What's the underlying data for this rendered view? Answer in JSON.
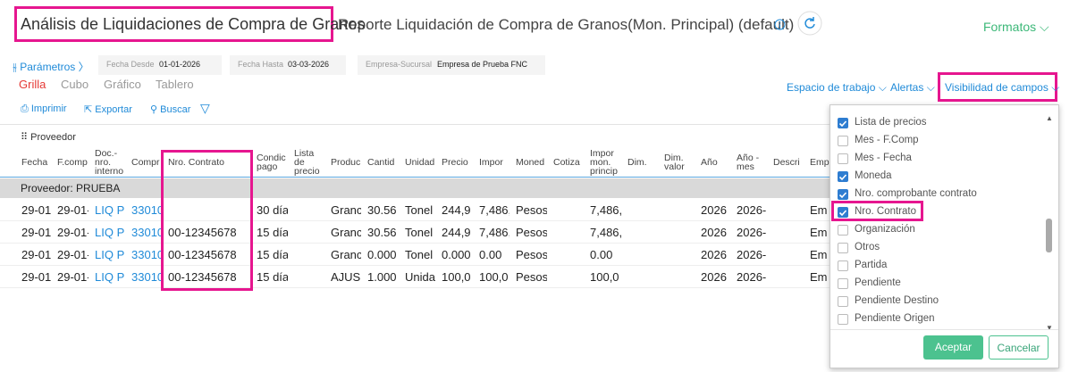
{
  "header": {
    "title": "Análisis de Liquidaciones de Compra de Granos",
    "report": "Reporte Liquidación de Compra de Granos(Mon. Principal) (default)",
    "formats": "Formatos"
  },
  "filters": {
    "params": "Parámetros",
    "items": [
      {
        "label": "Fecha Desde",
        "value": "01-01-2026"
      },
      {
        "label": "Fecha Hasta",
        "value": "03-03-2026"
      },
      {
        "label": "Empresa-Sucursal",
        "value": "Empresa de Prueba FNC"
      }
    ]
  },
  "tabs": {
    "items": [
      "Grilla",
      "Cubo",
      "Gráfico",
      "Tablero"
    ],
    "active": 0
  },
  "links": [
    "Espacio de trabajo",
    "Alertas",
    "Visibilidad de campos"
  ],
  "toolbar": [
    "Imprimir",
    "Exportar",
    "Buscar"
  ],
  "table": {
    "group_by": "Proveedor",
    "columns": [
      "Fecha",
      "F.comp",
      "Doc.- nro. interno",
      "Compr",
      "Nro. Contrato",
      "Condic pago",
      "Lista de precio",
      "Produc",
      "Cantid",
      "Unidad",
      "Precio",
      "Impor",
      "Moned",
      "Cotiza",
      "Impor mon. princip",
      "Dim.",
      "Dim. valor",
      "Año",
      "Año - mes",
      "Descri",
      "Emp"
    ],
    "group_row": "Proveedor: PRUEBA",
    "rows": [
      [
        "29-01-",
        "29-01-",
        "LIQ P",
        "33010",
        null,
        "30 día",
        null,
        "Granc",
        "30.56",
        "Tonel",
        "244,9",
        "7,486,",
        "Pesos",
        null,
        "7,486,",
        null,
        null,
        "2026",
        "2026-",
        null,
        "Em"
      ],
      [
        "29-01-",
        "29-01-",
        "LIQ P",
        "33010",
        "00-12345678",
        "15 día",
        null,
        "Granc",
        "30.56",
        "Tonel",
        "244,9",
        "7,486,",
        "Pesos",
        null,
        "7,486,",
        null,
        null,
        "2026",
        "2026-",
        null,
        "Em"
      ],
      [
        "29-01-",
        "29-01-",
        "LIQ P",
        "33010",
        "00-12345678",
        "15 día",
        null,
        "Granc",
        "0.000",
        "Tonel",
        "0.000",
        "0.00",
        "Pesos",
        null,
        "0.00",
        null,
        null,
        "2026",
        "2026-",
        null,
        "Em"
      ],
      [
        "29-01-",
        "29-01-",
        "LIQ P",
        "33010",
        "00-12345678",
        "15 día",
        null,
        "AJUS",
        "1.000",
        "Unida",
        "100,0",
        "100,0",
        "Pesos",
        null,
        "100,0",
        null,
        null,
        "2026",
        "2026-",
        null,
        "Em"
      ]
    ]
  },
  "field_panel": {
    "items": [
      {
        "label": "Lista de precios",
        "checked": true
      },
      {
        "label": "Mes - F.Comp",
        "checked": false
      },
      {
        "label": "Mes - Fecha",
        "checked": false
      },
      {
        "label": "Moneda",
        "checked": true
      },
      {
        "label": "Nro. comprobante contrato",
        "checked": true
      },
      {
        "label": "Nro. Contrato",
        "checked": true
      },
      {
        "label": "Organización",
        "checked": false
      },
      {
        "label": "Otros",
        "checked": false
      },
      {
        "label": "Partida",
        "checked": false
      },
      {
        "label": "Pendiente",
        "checked": false
      },
      {
        "label": "Pendiente Destino",
        "checked": false
      },
      {
        "label": "Pendiente Origen",
        "checked": false
      }
    ],
    "accept": "Aceptar",
    "cancel": "Cancelar"
  }
}
